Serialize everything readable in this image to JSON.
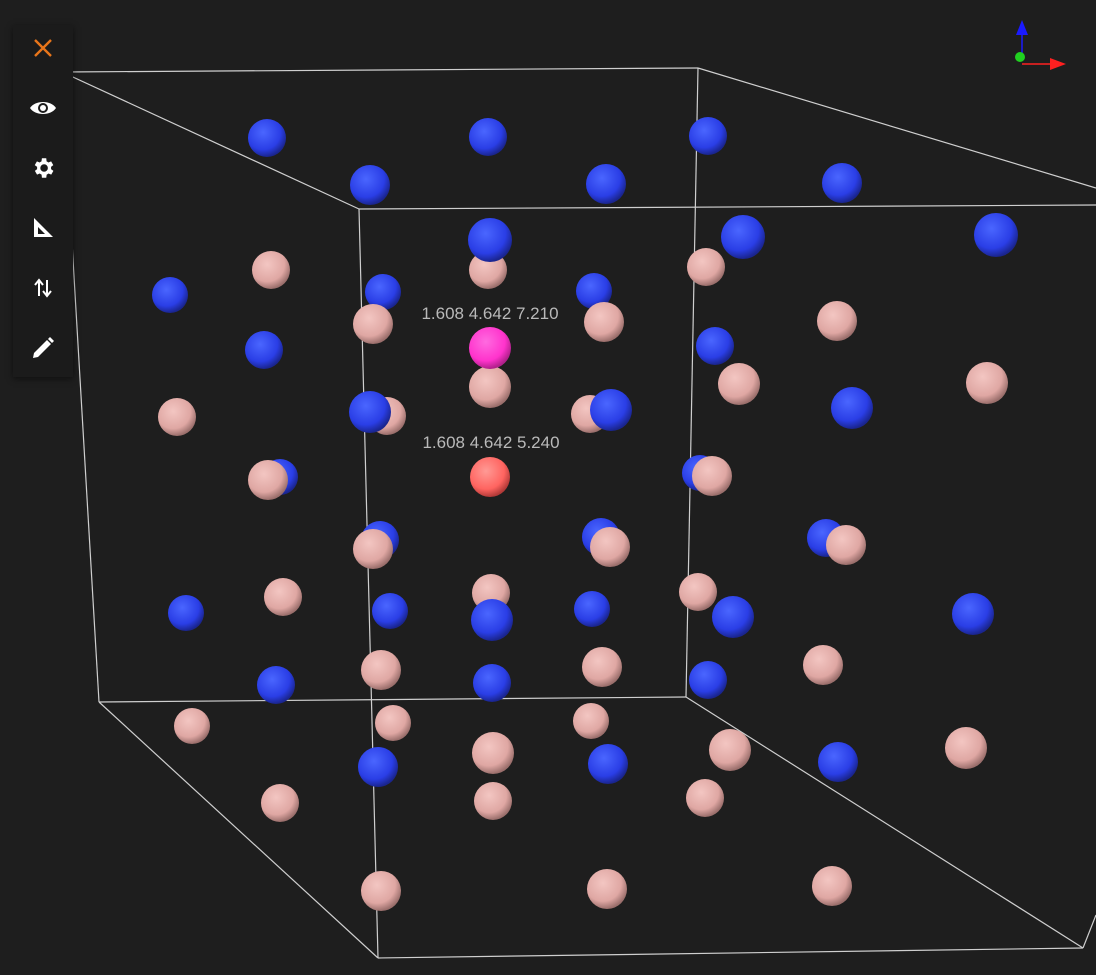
{
  "toolbar": {
    "items": [
      {
        "icon": "close-icon",
        "color": "#e8751a"
      },
      {
        "icon": "eye-icon",
        "color": "#ffffff"
      },
      {
        "icon": "gear-icon",
        "color": "#ffffff"
      },
      {
        "icon": "ruler-triangle-icon",
        "color": "#ffffff"
      },
      {
        "icon": "swap-vertical-icon",
        "color": "#ffffff"
      },
      {
        "icon": "pencil-icon",
        "color": "#ffffff"
      }
    ]
  },
  "viewer": {
    "background": "#1e1e1e",
    "box_color": "#cfcfcf",
    "atom_colors": {
      "blue": "#2d45f0",
      "pink": "#e8b0ac",
      "selected_top": "#ff3fd0",
      "selected_bottom": "#ff6a66"
    },
    "labels": [
      {
        "text": "1.608 4.642 7.210"
      },
      {
        "text": "1.608 4.642 5.240"
      }
    ]
  },
  "axes": {
    "x_color": "#ff2020",
    "y_color": "#20d020",
    "z_color": "#1a1aff"
  }
}
